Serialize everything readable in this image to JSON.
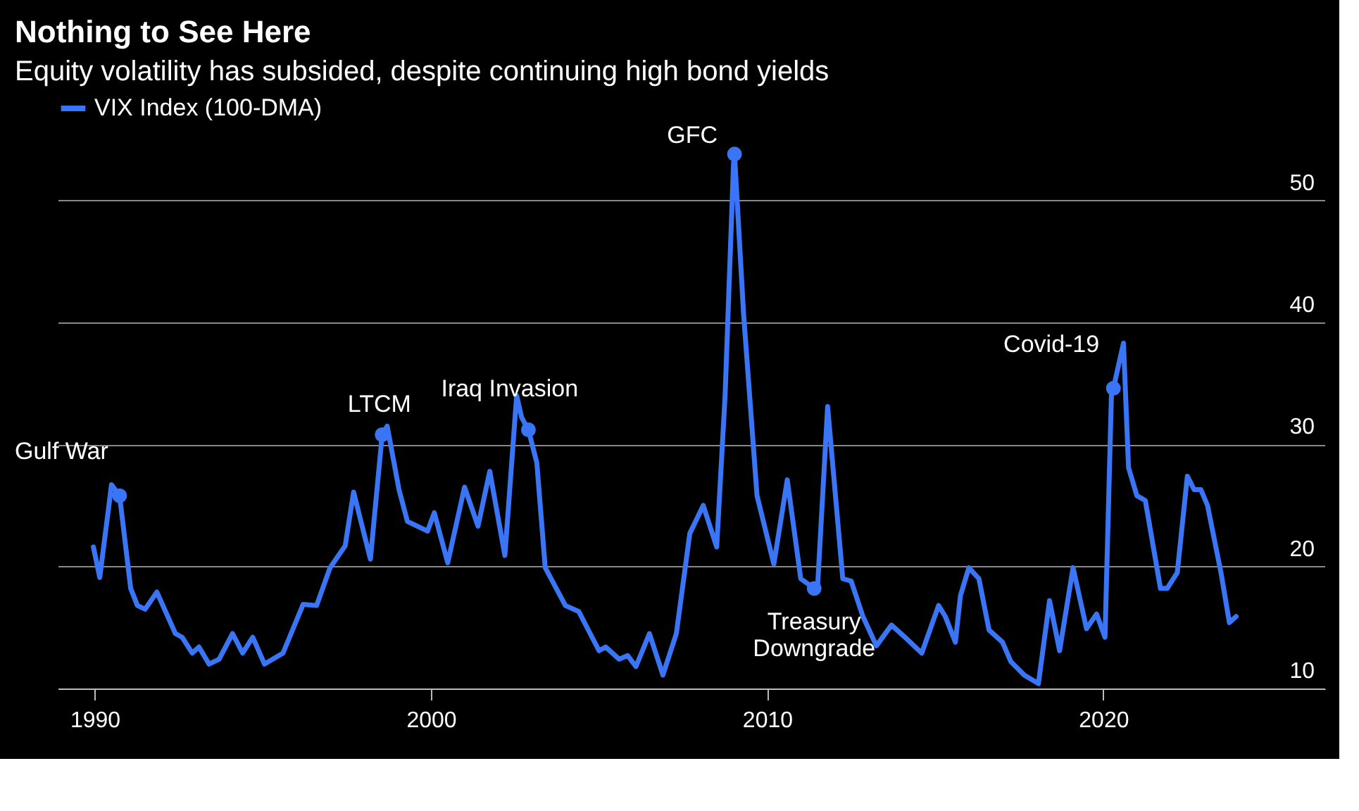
{
  "chart_data": {
    "type": "line",
    "title": "Nothing to See Here",
    "subtitle": "Equity volatility has subsided, despite continuing high bond yields",
    "x": [
      1989.96,
      1990.15,
      1990.5,
      1990.74,
      1991.07,
      1991.27,
      1991.5,
      1991.85,
      1992.4,
      1992.6,
      1992.9,
      1993.1,
      1993.4,
      1993.7,
      1994.1,
      1994.4,
      1994.7,
      1995.05,
      1995.6,
      1996.2,
      1996.6,
      1997.0,
      1997.45,
      1997.7,
      1998.2,
      1998.55,
      1998.7,
      1999.05,
      1999.3,
      1999.9,
      2000.1,
      2000.5,
      2001.0,
      2001.4,
      2001.75,
      2002.2,
      2002.55,
      2002.7,
      2002.9,
      2003.15,
      2003.4,
      2004.0,
      2004.4,
      2005.0,
      2005.2,
      2005.6,
      2005.85,
      2006.1,
      2006.5,
      2006.9,
      2007.3,
      2007.7,
      2008.1,
      2008.5,
      2008.75,
      2009.0,
      2009.03,
      2009.3,
      2009.7,
      2010.2,
      2010.6,
      2011.0,
      2011.4,
      2011.5,
      2011.8,
      2012.25,
      2012.5,
      2012.85,
      2013.25,
      2013.7,
      2014.1,
      2014.6,
      2015.1,
      2015.3,
      2015.6,
      2015.75,
      2016.0,
      2016.3,
      2016.6,
      2017.0,
      2017.25,
      2017.65,
      2018.07,
      2018.4,
      2018.7,
      2019.1,
      2019.5,
      2019.8,
      2020.05,
      2020.25,
      2020.3,
      2020.6,
      2020.75,
      2021.0,
      2021.25,
      2021.45,
      2021.7,
      2021.9,
      2022.2,
      2022.5,
      2022.7,
      2022.9,
      2023.1,
      2023.5,
      2023.75,
      2023.95
    ],
    "series": [
      {
        "name": "VIX Index (100-DMA)",
        "color": "#3a75f5",
        "values": [
          21.6,
          19.1,
          26.7,
          25.8,
          18.2,
          16.8,
          16.5,
          17.9,
          14.5,
          14.2,
          12.9,
          13.4,
          12.0,
          12.4,
          14.5,
          12.9,
          14.2,
          12.0,
          12.9,
          16.9,
          16.8,
          19.9,
          21.7,
          26.1,
          20.6,
          30.8,
          31.5,
          26.3,
          23.7,
          22.9,
          24.4,
          20.3,
          26.5,
          23.3,
          27.8,
          20.9,
          34.0,
          32.2,
          31.2,
          28.5,
          19.9,
          16.8,
          16.3,
          13.1,
          13.4,
          12.4,
          12.7,
          11.8,
          14.5,
          11.1,
          14.5,
          22.7,
          25.0,
          21.6,
          34.0,
          53.0,
          53.8,
          40.7,
          25.8,
          20.2,
          27.1,
          19.0,
          18.2,
          18.3,
          33.1,
          19.0,
          18.8,
          15.9,
          13.5,
          15.2,
          14.2,
          12.9,
          16.8,
          15.9,
          13.8,
          17.6,
          19.9,
          19.0,
          14.8,
          13.8,
          12.2,
          11.1,
          10.4,
          17.2,
          13.1,
          19.9,
          14.9,
          16.1,
          14.2,
          34.9,
          34.6,
          38.3,
          28.1,
          25.8,
          25.4,
          22.2,
          18.2,
          18.2,
          19.5,
          27.4,
          26.3,
          26.3,
          25.0,
          19.5,
          15.4,
          15.9
        ]
      }
    ],
    "xlim": [
      1988.9,
      2026.6
    ],
    "xticks": [
      1990,
      2000,
      2010,
      2020
    ],
    "ylim": [
      10,
      55
    ],
    "yticks": [
      10,
      20,
      30,
      40,
      50
    ],
    "grid": "y",
    "legend": "top left",
    "line_style": "solid",
    "annotations": [
      {
        "text": "Gulf War",
        "x": 1990.74,
        "y": 25.8
      },
      {
        "text": "LTCM",
        "x": 1998.55,
        "y": 30.8
      },
      {
        "text": "Iraq Invasion",
        "x": 2002.9,
        "y": 31.2
      },
      {
        "text": "GFC",
        "x": 2009.03,
        "y": 53.8
      },
      {
        "text": "Treasury\nDowngrade",
        "x": 2011.4,
        "y": 18.2
      },
      {
        "text": "Covid-19",
        "x": 2020.3,
        "y": 34.6
      }
    ]
  }
}
